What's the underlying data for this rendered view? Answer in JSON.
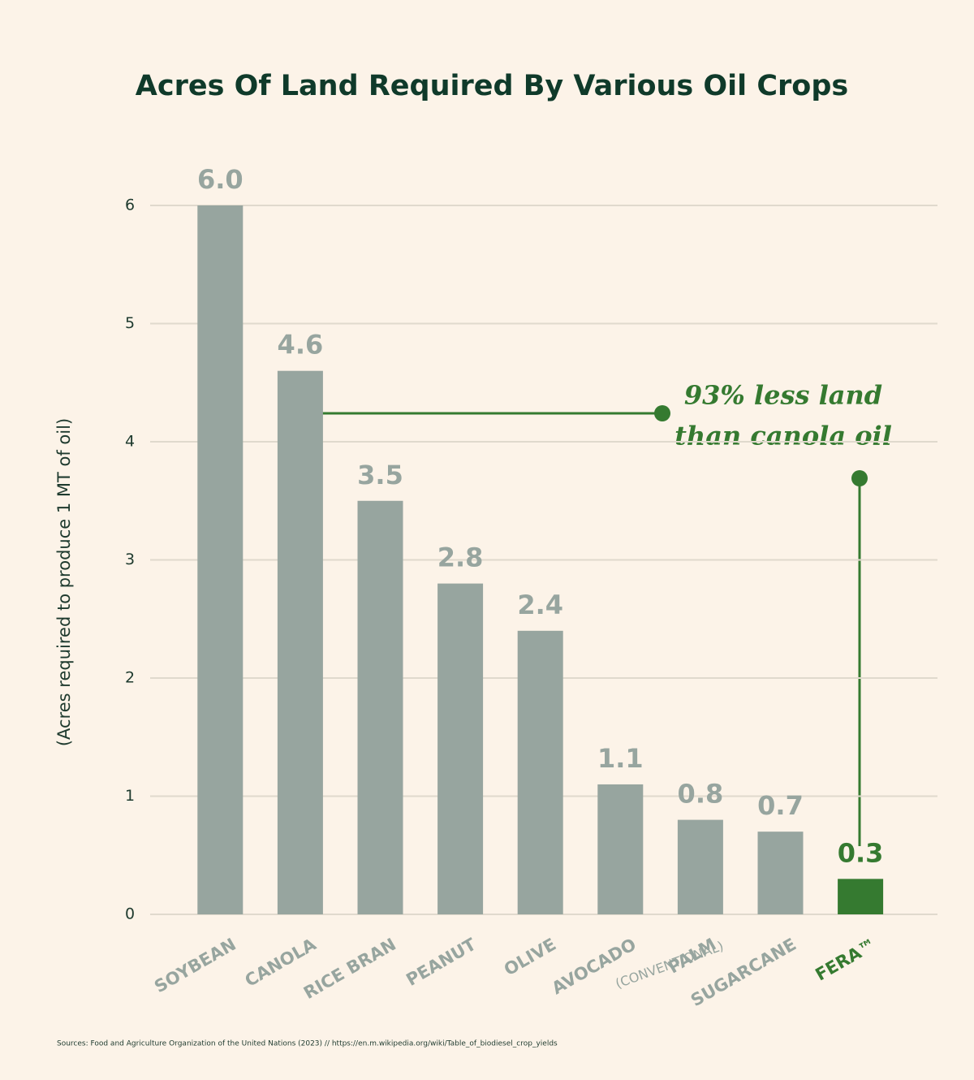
{
  "chart_data": {
    "type": "bar",
    "title": "Acres Of Land Required By Various Oil Crops",
    "y_label": "(Acres required to produce 1 MT of oil)",
    "categories": [
      "SOYBEAN",
      "CANOLA",
      "RICE BRAN",
      "PEANUT",
      "OLIVE",
      "AVOCADO",
      "PALM",
      "SUGARCANE",
      "FERA™"
    ],
    "category_sublabels": [
      null,
      null,
      null,
      null,
      null,
      null,
      "(CONVENTIONAL)",
      null,
      null
    ],
    "values": [
      6.0,
      4.6,
      3.5,
      2.8,
      2.4,
      1.1,
      0.8,
      0.7,
      0.3
    ],
    "value_labels": [
      "6.0",
      "4.6",
      "3.5",
      "2.8",
      "2.4",
      "1.1",
      "0.8",
      "0.7",
      "0.3"
    ],
    "colors": [
      "#97a59f",
      "#97a59f",
      "#97a59f",
      "#97a59f",
      "#97a59f",
      "#97a59f",
      "#97a59f",
      "#97a59f",
      "#357a30"
    ],
    "ylim": [
      0,
      6
    ],
    "yticks": [
      0,
      1,
      2,
      3,
      4,
      5,
      6
    ],
    "grid": true,
    "annotation": [
      "93% less land",
      "than canola oil"
    ],
    "source": "Sources: Food and Agriculture Organization of the United Nations (2023) // https://en.m.wikipedia.org/wiki/Table_of_biodiesel_crop_yields"
  }
}
